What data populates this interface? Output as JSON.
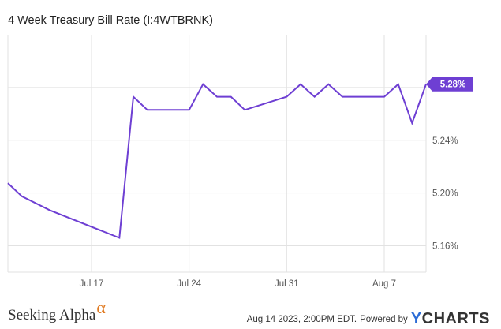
{
  "title": "4 Week Treasury Bill Rate (I:4WTBRNK)",
  "current_value_label": "5.28%",
  "footer": {
    "brand_text": "Seeking Alpha",
    "brand_mark": "α",
    "timestamp": "Aug 14 2023, 2:00PM EDT.",
    "powered_by": "Powered by",
    "logo_y": "Y",
    "logo_rest": "CHARTS"
  },
  "colors": {
    "line": "#6e3fd3",
    "tag": "#6e3fd3",
    "grid": "#e2e2e2",
    "brand_accent": "#e07b23",
    "logo_accent": "#2b6cd6"
  },
  "chart_data": {
    "type": "line",
    "title": "4 Week Treasury Bill Rate (I:4WTBRNK)",
    "x_axis": {
      "type": "date",
      "min": "2023-07-11",
      "max": "2023-08-10",
      "ticks": [
        {
          "date": "2023-07-17",
          "label": "Jul 17"
        },
        {
          "date": "2023-07-24",
          "label": "Jul 24"
        },
        {
          "date": "2023-07-31",
          "label": "Jul 31"
        },
        {
          "date": "2023-08-07",
          "label": "Aug 7"
        }
      ]
    },
    "y_axis": {
      "min": 5.14,
      "max": 5.32,
      "position": "right",
      "ticks": [
        5.16,
        5.2,
        5.24,
        5.28
      ],
      "labels": [
        "5.16%",
        "5.20%",
        "5.24%",
        "5.28%"
      ]
    },
    "grid": true,
    "series": [
      {
        "values": [
          {
            "date": "2023-07-11",
            "value": 5.2075
          },
          {
            "date": "2023-07-12",
            "value": 5.1975
          },
          {
            "date": "2023-07-14",
            "value": 5.187
          },
          {
            "date": "2023-07-19",
            "value": 5.166
          },
          {
            "date": "2023-07-20",
            "value": 5.273
          },
          {
            "date": "2023-07-21",
            "value": 5.263
          },
          {
            "date": "2023-07-24",
            "value": 5.263
          },
          {
            "date": "2023-07-25",
            "value": 5.2825
          },
          {
            "date": "2023-07-26",
            "value": 5.273
          },
          {
            "date": "2023-07-27",
            "value": 5.273
          },
          {
            "date": "2023-07-28",
            "value": 5.263
          },
          {
            "date": "2023-07-31",
            "value": 5.273
          },
          {
            "date": "2023-08-01",
            "value": 5.2825
          },
          {
            "date": "2023-08-02",
            "value": 5.273
          },
          {
            "date": "2023-08-03",
            "value": 5.2825
          },
          {
            "date": "2023-08-04",
            "value": 5.273
          },
          {
            "date": "2023-08-07",
            "value": 5.273
          },
          {
            "date": "2023-08-08",
            "value": 5.2825
          },
          {
            "date": "2023-08-09",
            "value": 5.253
          },
          {
            "date": "2023-08-10",
            "value": 5.2825
          }
        ]
      }
    ]
  }
}
